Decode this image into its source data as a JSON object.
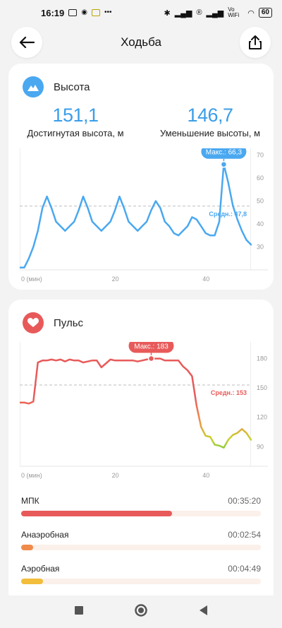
{
  "status_bar": {
    "time": "16:19",
    "signal_text": "Vo WiFi",
    "battery": "60"
  },
  "header": {
    "title": "Ходьба"
  },
  "altitude": {
    "title": "Высота",
    "gained_value": "151,1",
    "gained_label": "Достигнутая высота, м",
    "lost_value": "146,7",
    "lost_label": "Уменьшение высоты, м",
    "max_badge": "Макс.: 66,3",
    "avg_label": "Средн.: 47,8",
    "accent_color": "#4aa8f0"
  },
  "heart": {
    "title": "Пульс",
    "max_badge": "Макс.: 183",
    "avg_label": "Средн.: 153",
    "accent_color": "#e85a5a"
  },
  "chart_data": [
    {
      "type": "line",
      "x_ticks": [
        "0 (мин)",
        "20",
        "40"
      ],
      "y_ticks": [
        "70",
        "60",
        "50",
        "40",
        "30"
      ],
      "ylim": [
        20,
        73
      ],
      "xlim": [
        0,
        51
      ],
      "avg": 47.8,
      "max": 66.3,
      "x": [
        0,
        1,
        2,
        3,
        4,
        5,
        6,
        7,
        8,
        9,
        10,
        11,
        12,
        13,
        14,
        15,
        16,
        17,
        18,
        19,
        20,
        21,
        22,
        23,
        24,
        25,
        26,
        27,
        28,
        29,
        30,
        31,
        32,
        33,
        34,
        35,
        36,
        37,
        38,
        39,
        40,
        41,
        42,
        43,
        44,
        45,
        46,
        47,
        48,
        49,
        50,
        51
      ],
      "values": [
        21,
        21,
        25,
        30,
        37,
        47,
        52,
        47,
        41,
        39,
        37,
        39,
        41,
        46,
        52,
        47,
        41,
        39,
        37,
        39,
        41,
        46,
        52,
        47,
        41,
        39,
        37,
        39,
        41,
        46,
        50,
        47,
        41,
        39,
        36,
        35,
        37,
        39,
        43,
        42,
        39,
        36,
        35,
        35,
        41,
        66,
        58,
        48,
        42,
        37,
        33,
        31
      ]
    },
    {
      "type": "line",
      "x_ticks": [
        "0 (мин)",
        "20",
        "40"
      ],
      "y_ticks": [
        "180",
        "150",
        "120",
        "90"
      ],
      "ylim": [
        70,
        197
      ],
      "xlim": [
        0,
        51
      ],
      "avg": 153,
      "max": 183,
      "x": [
        0,
        1,
        2,
        3,
        4,
        5,
        6,
        7,
        8,
        9,
        10,
        11,
        12,
        13,
        14,
        15,
        16,
        17,
        18,
        19,
        20,
        21,
        22,
        23,
        24,
        25,
        26,
        27,
        28,
        29,
        30,
        31,
        32,
        33,
        34,
        35,
        36,
        37,
        38,
        39,
        40,
        41,
        42,
        43,
        44,
        45,
        46,
        47,
        48,
        49,
        50,
        51
      ],
      "values": [
        135,
        135,
        134,
        136,
        176,
        178,
        178,
        179,
        178,
        179,
        177,
        179,
        178,
        178,
        176,
        177,
        178,
        178,
        171,
        175,
        179,
        178,
        178,
        178,
        178,
        178,
        177,
        178,
        179,
        180,
        180,
        180,
        178,
        178,
        178,
        178,
        172,
        168,
        162,
        132,
        110,
        101,
        100,
        92,
        91,
        89,
        97,
        102,
        104,
        108,
        104,
        97
      ]
    }
  ],
  "zones": [
    {
      "name": "МПК",
      "time": "00:35:20",
      "fraction": 0.63,
      "color": "#e85a5a"
    },
    {
      "name": "Анаэробная",
      "time": "00:02:54",
      "fraction": 0.05,
      "color": "#f08a4b"
    },
    {
      "name": "Аэробная",
      "time": "00:04:49",
      "fraction": 0.09,
      "color": "#f2bd3a"
    }
  ]
}
